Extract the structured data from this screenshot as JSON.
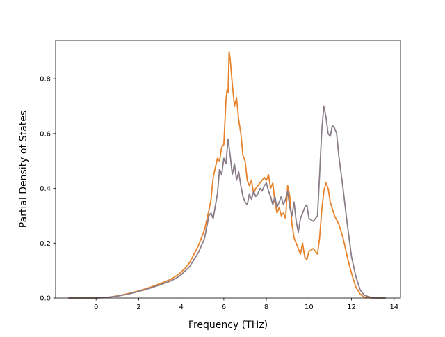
{
  "chart_data": {
    "type": "line",
    "title": "",
    "xlabel": "Frequency (THz)",
    "ylabel": "Partial Density of States",
    "xlim": [
      -1.9,
      14.3
    ],
    "ylim": [
      0.0,
      0.94
    ],
    "xticks": [
      0,
      2,
      4,
      6,
      8,
      10,
      12,
      14
    ],
    "yticks": [
      0.0,
      0.2,
      0.4,
      0.6,
      0.8
    ],
    "xtick_labels": [
      "0",
      "2",
      "4",
      "6",
      "8",
      "10",
      "12",
      "14"
    ],
    "ytick_labels": [
      "0.0",
      "0.2",
      "0.4",
      "0.6",
      "0.8"
    ],
    "grid": false,
    "legend": "none",
    "series": [
      {
        "color": "#e8822a",
        "x": [
          -1.3,
          -0.5,
          0.0,
          0.5,
          1.0,
          1.5,
          2.0,
          2.5,
          3.0,
          3.5,
          3.8,
          4.0,
          4.2,
          4.4,
          4.6,
          4.8,
          5.0,
          5.1,
          5.3,
          5.4,
          5.5,
          5.7,
          5.8,
          5.9,
          6.0,
          6.1,
          6.15,
          6.2,
          6.25,
          6.3,
          6.4,
          6.5,
          6.6,
          6.7,
          6.8,
          6.9,
          7.0,
          7.1,
          7.2,
          7.3,
          7.4,
          7.5,
          7.6,
          7.7,
          7.8,
          7.9,
          8.0,
          8.1,
          8.2,
          8.3,
          8.4,
          8.5,
          8.6,
          8.7,
          8.8,
          8.9,
          9.0,
          9.1,
          9.2,
          9.3,
          9.4,
          9.5,
          9.6,
          9.7,
          9.8,
          9.9,
          10.0,
          10.2,
          10.4,
          10.5,
          10.6,
          10.7,
          10.8,
          10.9,
          11.0,
          11.2,
          11.4,
          11.6,
          11.8,
          12.0,
          12.2,
          12.4,
          12.6,
          13.0,
          13.6
        ],
        "y": [
          0.0,
          0.0,
          0.0,
          0.002,
          0.008,
          0.016,
          0.026,
          0.038,
          0.052,
          0.068,
          0.082,
          0.095,
          0.11,
          0.13,
          0.16,
          0.19,
          0.23,
          0.25,
          0.32,
          0.36,
          0.44,
          0.51,
          0.5,
          0.55,
          0.56,
          0.72,
          0.76,
          0.75,
          0.9,
          0.87,
          0.78,
          0.7,
          0.73,
          0.65,
          0.6,
          0.52,
          0.5,
          0.43,
          0.41,
          0.43,
          0.38,
          0.4,
          0.41,
          0.42,
          0.43,
          0.44,
          0.43,
          0.45,
          0.4,
          0.42,
          0.35,
          0.31,
          0.33,
          0.3,
          0.31,
          0.29,
          0.41,
          0.37,
          0.27,
          0.22,
          0.2,
          0.18,
          0.16,
          0.2,
          0.15,
          0.14,
          0.17,
          0.18,
          0.16,
          0.22,
          0.32,
          0.39,
          0.42,
          0.4,
          0.35,
          0.3,
          0.27,
          0.22,
          0.15,
          0.09,
          0.04,
          0.015,
          0.002,
          0.0,
          0.0
        ]
      },
      {
        "color": "#8a7c88",
        "x": [
          -1.3,
          -0.5,
          0.0,
          0.5,
          1.0,
          1.5,
          2.0,
          2.5,
          3.0,
          3.5,
          3.8,
          4.0,
          4.2,
          4.4,
          4.6,
          4.8,
          5.0,
          5.1,
          5.3,
          5.4,
          5.5,
          5.7,
          5.8,
          5.9,
          6.0,
          6.1,
          6.2,
          6.3,
          6.4,
          6.5,
          6.6,
          6.7,
          6.8,
          6.9,
          7.0,
          7.1,
          7.2,
          7.3,
          7.4,
          7.5,
          7.6,
          7.7,
          7.8,
          7.9,
          8.0,
          8.1,
          8.2,
          8.3,
          8.4,
          8.5,
          8.6,
          8.7,
          8.8,
          8.9,
          9.0,
          9.1,
          9.2,
          9.3,
          9.4,
          9.5,
          9.6,
          9.7,
          9.8,
          9.9,
          10.0,
          10.2,
          10.4,
          10.5,
          10.6,
          10.7,
          10.8,
          10.9,
          11.0,
          11.1,
          11.2,
          11.3,
          11.4,
          11.6,
          11.8,
          12.0,
          12.2,
          12.4,
          12.6,
          13.0,
          13.6
        ],
        "y": [
          0.0,
          0.0,
          0.0,
          0.002,
          0.007,
          0.014,
          0.024,
          0.035,
          0.048,
          0.062,
          0.074,
          0.085,
          0.1,
          0.115,
          0.14,
          0.165,
          0.2,
          0.22,
          0.3,
          0.31,
          0.29,
          0.38,
          0.47,
          0.45,
          0.51,
          0.49,
          0.58,
          0.52,
          0.45,
          0.49,
          0.43,
          0.46,
          0.41,
          0.37,
          0.35,
          0.34,
          0.38,
          0.36,
          0.39,
          0.37,
          0.38,
          0.4,
          0.39,
          0.41,
          0.42,
          0.39,
          0.37,
          0.34,
          0.37,
          0.33,
          0.35,
          0.37,
          0.34,
          0.36,
          0.39,
          0.33,
          0.3,
          0.35,
          0.28,
          0.24,
          0.29,
          0.31,
          0.33,
          0.34,
          0.29,
          0.28,
          0.3,
          0.45,
          0.61,
          0.7,
          0.66,
          0.6,
          0.59,
          0.63,
          0.62,
          0.6,
          0.52,
          0.4,
          0.27,
          0.15,
          0.08,
          0.03,
          0.01,
          0.0,
          0.0
        ]
      }
    ]
  }
}
